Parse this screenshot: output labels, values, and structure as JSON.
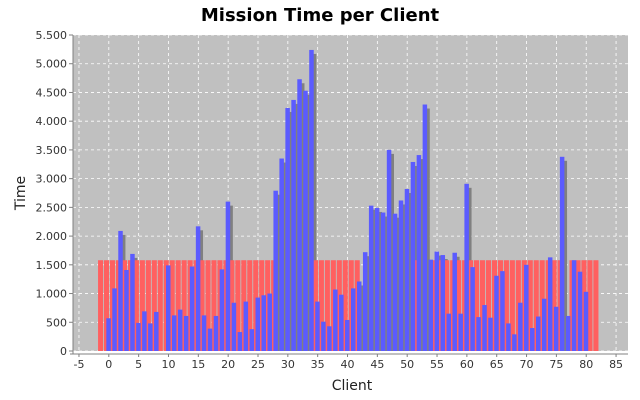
{
  "chart_data": {
    "type": "bar",
    "title": "Mission Time per Client",
    "xlabel": "Client",
    "ylabel": "Time",
    "xlim": [
      -6,
      87
    ],
    "ylim": [
      0,
      5500
    ],
    "x_ticks": [
      -5,
      0,
      5,
      10,
      15,
      20,
      25,
      30,
      35,
      40,
      45,
      50,
      55,
      60,
      65,
      70,
      75,
      80,
      85
    ],
    "y_ticks": [
      0,
      500,
      1000,
      1500,
      2000,
      2500,
      3000,
      3500,
      4000,
      4500,
      5000,
      5500
    ],
    "x_tick_labels": [
      "-5",
      "0",
      "5",
      "10",
      "15",
      "20",
      "25",
      "30",
      "35",
      "40",
      "45",
      "50",
      "55",
      "60",
      "65",
      "70",
      "75",
      "80",
      "85"
    ],
    "y_tick_labels": [
      "0",
      "500",
      "1.000",
      "1.500",
      "2.000",
      "2.500",
      "3.000",
      "3.500",
      "4.000",
      "4.500",
      "5.000",
      "5.500"
    ],
    "grid": true,
    "legend": "none",
    "colors": {
      "background": "#c0c0c0",
      "grid": "#ffffff",
      "series_a": "#ff6060",
      "series_b": "#5b5bff",
      "shadow": "#808080"
    },
    "x": [
      -1,
      0,
      1,
      2,
      3,
      4,
      5,
      6,
      7,
      8,
      9,
      10,
      11,
      12,
      13,
      14,
      15,
      16,
      17,
      18,
      19,
      20,
      21,
      22,
      23,
      24,
      25,
      26,
      27,
      28,
      29,
      30,
      31,
      32,
      33,
      34,
      35,
      36,
      37,
      38,
      39,
      40,
      41,
      42,
      43,
      44,
      45,
      46,
      47,
      48,
      49,
      50,
      51,
      52,
      53,
      54,
      55,
      56,
      57,
      58,
      59,
      60,
      61,
      62,
      63,
      64,
      65,
      66,
      67,
      68,
      69,
      70,
      71,
      72,
      73,
      74,
      75,
      76,
      77,
      78,
      79,
      80,
      81,
      82
    ],
    "series": [
      {
        "values": [
          1580,
          1580,
          1580,
          1580,
          1580,
          1580,
          1580,
          1580,
          1580,
          1580,
          1580,
          1580,
          1580,
          1580,
          1580,
          1580,
          1580,
          1580,
          1580,
          1580,
          1580,
          1580,
          1580,
          1580,
          1580,
          1580,
          1580,
          1580,
          1580,
          1580,
          0,
          0,
          0,
          0,
          0,
          0,
          1580,
          1580,
          1580,
          1580,
          1580,
          1580,
          1580,
          1580,
          0,
          0,
          0,
          0,
          0,
          0,
          0,
          0,
          0,
          1580,
          0,
          0,
          1580,
          1580,
          1580,
          1580,
          1580,
          1580,
          1580,
          1580,
          1580,
          1580,
          1580,
          1580,
          1580,
          1580,
          1580,
          1580,
          1580,
          1580,
          1580,
          1580,
          1580,
          1580,
          0,
          1580,
          1580,
          1580,
          1580,
          1580
        ]
      },
      {
        "values": [
          0,
          570,
          1090,
          2090,
          1410,
          1690,
          490,
          690,
          480,
          680,
          0,
          1490,
          620,
          720,
          610,
          1470,
          2170,
          620,
          390,
          610,
          1420,
          2600,
          840,
          330,
          860,
          380,
          930,
          970,
          1000,
          2790,
          3350,
          4230,
          4370,
          4730,
          4530,
          5240,
          860,
          510,
          430,
          1070,
          980,
          540,
          1090,
          1210,
          1720,
          2530,
          2490,
          2410,
          3500,
          2390,
          2620,
          2820,
          3290,
          3410,
          4290,
          1590,
          1730,
          1670,
          650,
          1710,
          650,
          2910,
          1460,
          590,
          800,
          580,
          1310,
          1390,
          480,
          290,
          840,
          1500,
          400,
          600,
          910,
          1630,
          770,
          3380,
          610,
          1580,
          1380,
          1030,
          0,
          0
        ]
      }
    ]
  }
}
